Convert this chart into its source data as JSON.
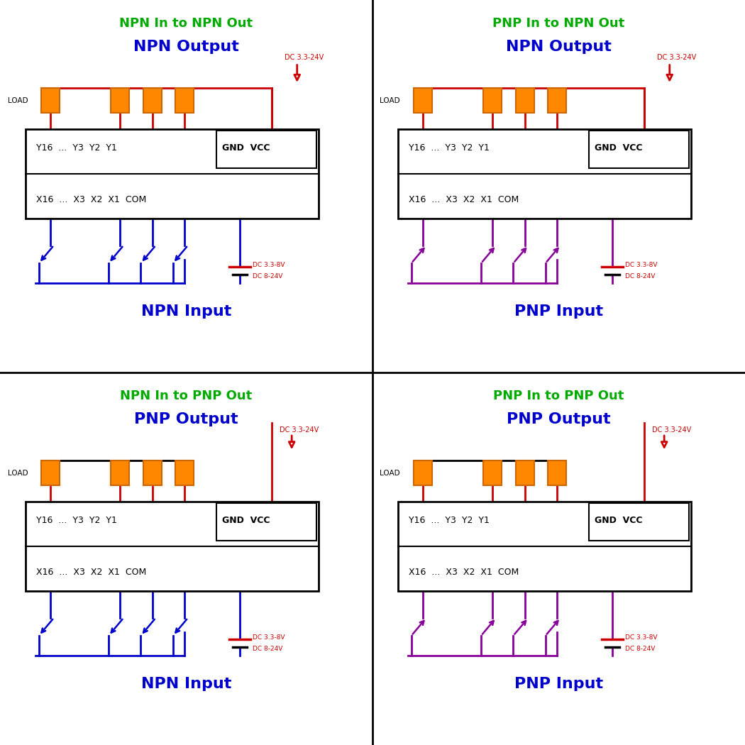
{
  "color_green": "#00AA00",
  "color_blue": "#0000CC",
  "color_red": "#CC0000",
  "color_black": "#000000",
  "color_orange_face": "#FF8800",
  "color_orange_edge": "#CC6600",
  "color_purple": "#880099",
  "color_white": "#FFFFFF",
  "quadrants": [
    {
      "title1": "NPN In to NPN Out",
      "title2": "NPN Output",
      "input_label": "NPN Input",
      "out_color": "#CC0000",
      "in_color": "#0000CC",
      "pnp_out": false,
      "pnp_in": false
    },
    {
      "title1": "PNP In to NPN Out",
      "title2": "NPN Output",
      "input_label": "PNP Input",
      "out_color": "#CC0000",
      "in_color": "#880099",
      "pnp_out": false,
      "pnp_in": true
    },
    {
      "title1": "NPN In to PNP Out",
      "title2": "PNP Output",
      "input_label": "NPN Input",
      "out_color": "#000000",
      "in_color": "#0000CC",
      "pnp_out": true,
      "pnp_in": false
    },
    {
      "title1": "PNP In to PNP Out",
      "title2": "PNP Output",
      "input_label": "PNP Input",
      "out_color": "#CC0000",
      "in_color": "#880099",
      "pnp_out": true,
      "pnp_in": true
    }
  ]
}
